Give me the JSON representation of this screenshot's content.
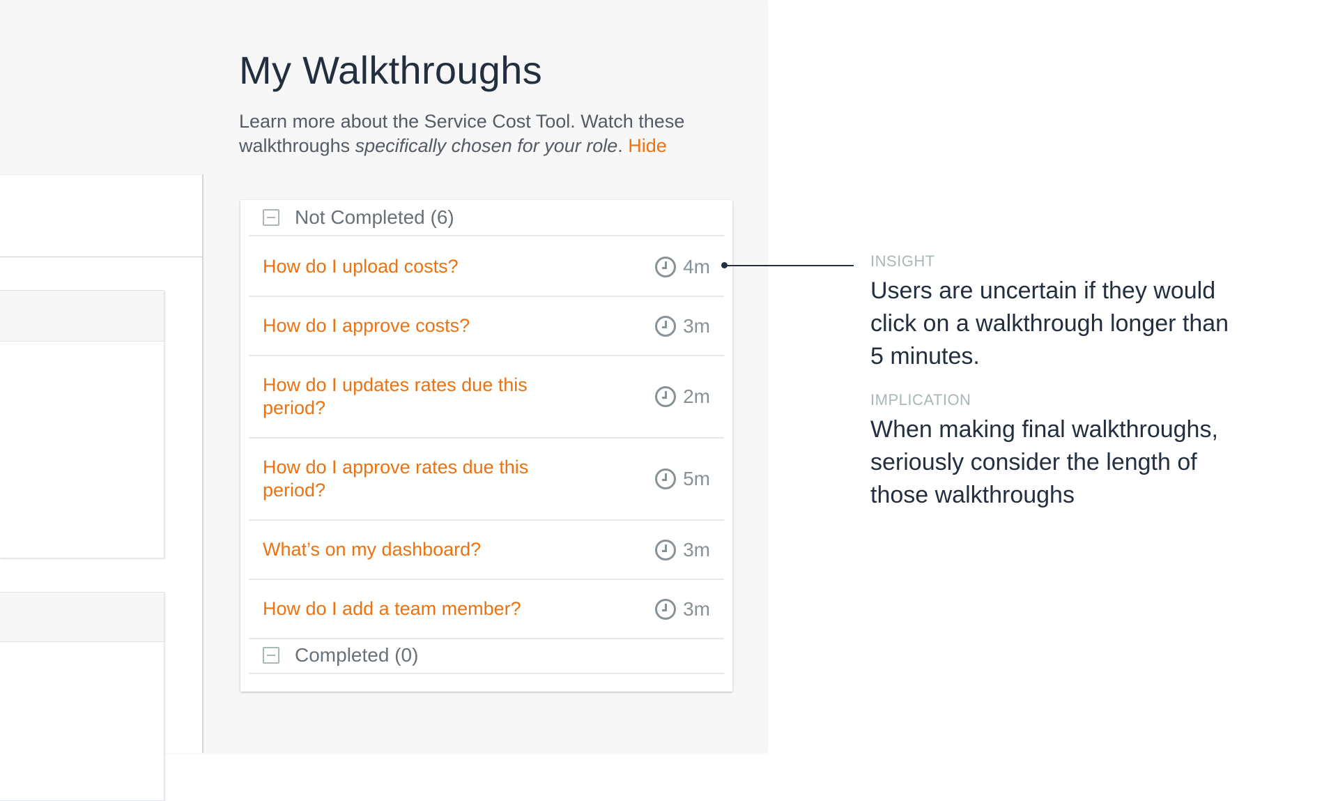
{
  "page": {
    "title": "My Walkthroughs",
    "description_prefix": "Learn more about the Service Cost Tool. Watch these walkthroughs ",
    "description_emphasis": "specifically chosen for your role",
    "description_suffix": ". ",
    "hide_link": "Hide"
  },
  "walkthroughs": {
    "not_completed_label": "Not Completed (6)",
    "completed_label": "Completed (0)",
    "items": [
      {
        "title": "How do I upload costs?",
        "duration": "4m"
      },
      {
        "title": "How do I approve costs?",
        "duration": "3m"
      },
      {
        "title": "How do I updates rates due this period?",
        "duration": "2m"
      },
      {
        "title": "How do I approve rates due this period?",
        "duration": "5m"
      },
      {
        "title": "What’s on my dashboard?",
        "duration": "3m"
      },
      {
        "title": "How do I add a team member?",
        "duration": "3m"
      }
    ]
  },
  "annotations": {
    "insight_label": "INSIGHT",
    "insight_text": "Users are uncertain if they would click on a walkthrough longer than 5 minutes.",
    "implication_label": "IMPLICATION",
    "implication_text": "When making final walkthroughs, seriously consider the length of those walkthroughs"
  },
  "colors": {
    "accent": "#ec7211",
    "text": "#232f3e",
    "muted": "#879196"
  }
}
